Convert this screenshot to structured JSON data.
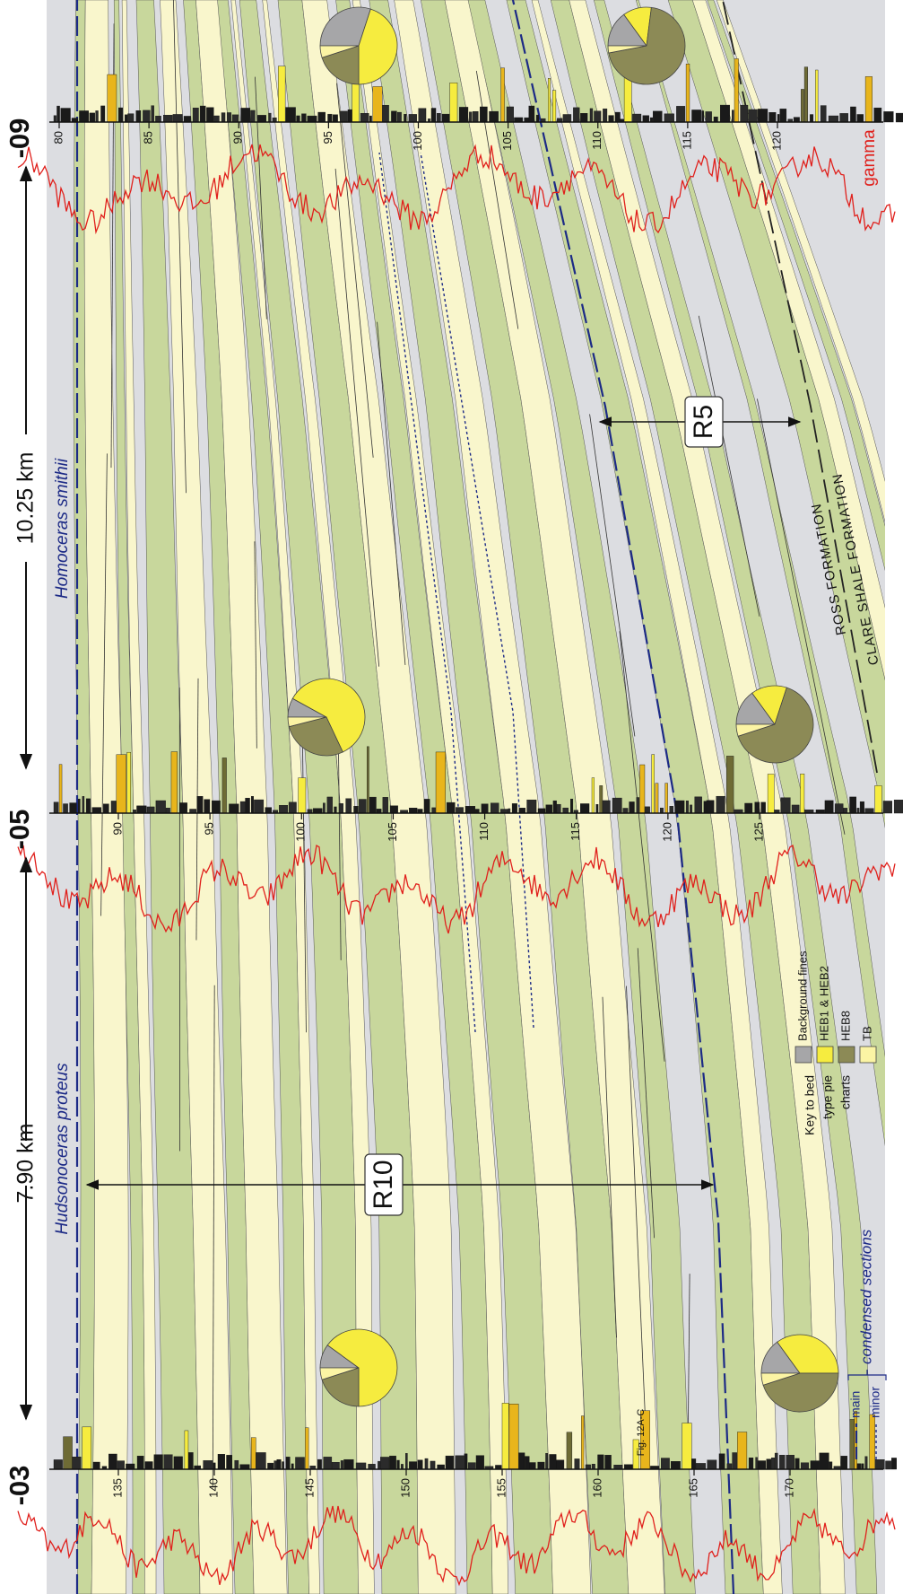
{
  "wells": [
    {
      "label": "-03",
      "depth_ticks": [
        135,
        140,
        145,
        150,
        155,
        160,
        165,
        170
      ]
    },
    {
      "label": "-05",
      "depth_ticks": [
        90,
        95,
        100,
        105,
        110,
        115,
        120,
        125
      ]
    },
    {
      "label": "-09",
      "depth_ticks": [
        80,
        85,
        90,
        95,
        100,
        105,
        110,
        115,
        120
      ]
    }
  ],
  "distances": [
    "7.90 km",
    "10.25 km"
  ],
  "markers": [
    "Hudsonoceras proteus",
    "Homoceras smithii"
  ],
  "intervals": [
    "R10",
    "R5"
  ],
  "formations": [
    "ROSS FORMATION",
    "CLARE SHALE FORMATION"
  ],
  "gamma_label": "gamma",
  "figure_ref": "Fig. 12A-C",
  "pie_key": {
    "title": [
      "Key to bed",
      "type pie",
      "charts"
    ],
    "items": [
      {
        "name": "Background fines",
        "color": "#a6a6a8"
      },
      {
        "name": "HEB1 & HEB2",
        "color": "#f6ec3f"
      },
      {
        "name": "HEB8",
        "color": "#8c8a56"
      },
      {
        "name": "TB",
        "color": "#fbf4a4"
      }
    ]
  },
  "pies": [
    {
      "values": [
        10,
        65,
        20,
        5
      ]
    },
    {
      "values": [
        15,
        35,
        45,
        5
      ]
    },
    {
      "values": [
        8,
        60,
        28,
        4
      ]
    },
    {
      "values": [
        15,
        15,
        65,
        5
      ]
    },
    {
      "values": [
        30,
        45,
        20,
        5
      ]
    },
    {
      "values": [
        15,
        12,
        70,
        3
      ]
    }
  ],
  "condensed_key": {
    "items": [
      "main",
      "minor"
    ],
    "title": "condensed sections"
  }
}
